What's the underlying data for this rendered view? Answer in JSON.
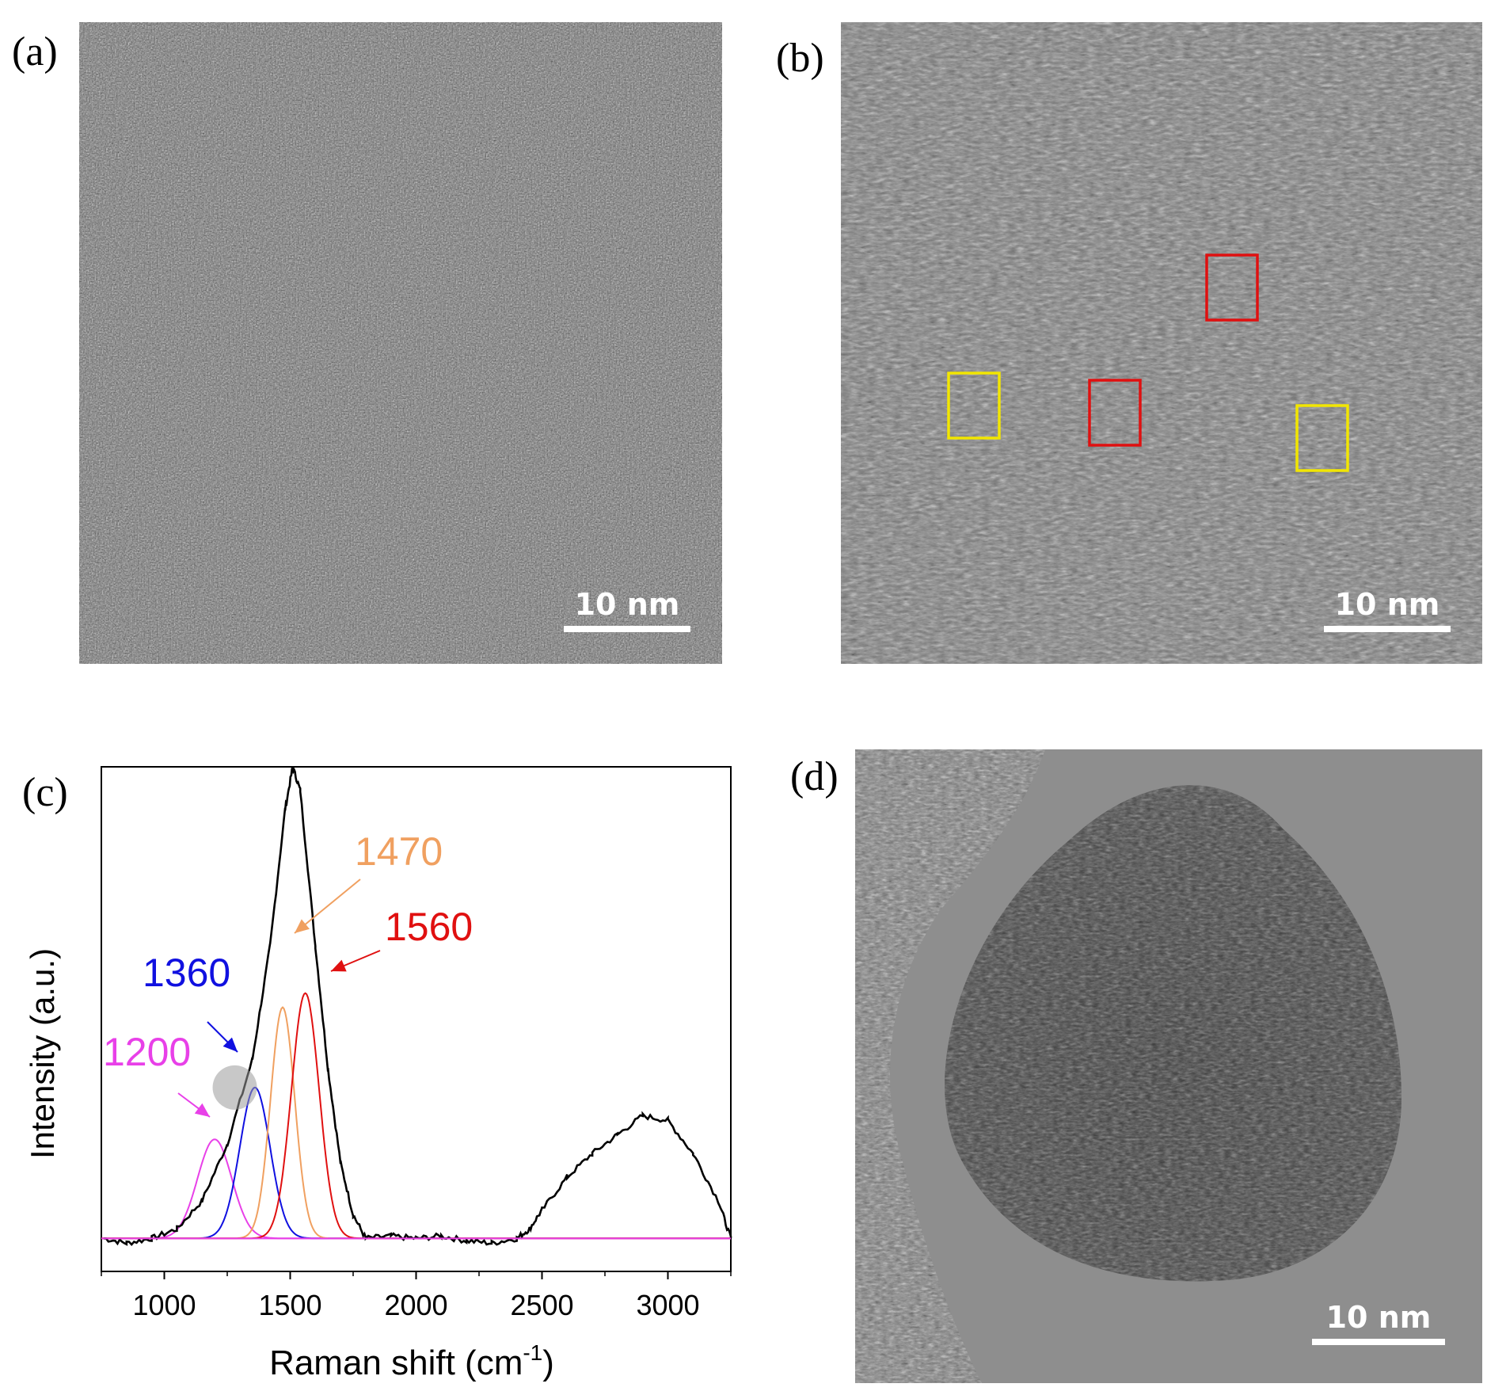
{
  "panels": {
    "a": {
      "label": "(a)",
      "scale_bar": "10 nm"
    },
    "b": {
      "label": "(b)",
      "scale_bar": "10 nm",
      "boxes": [
        {
          "color": "#e01010"
        },
        {
          "color": "#e01010"
        },
        {
          "color": "#f2e600"
        },
        {
          "color": "#f2e600"
        }
      ]
    },
    "c": {
      "label": "(c)"
    },
    "d": {
      "label": "(d)",
      "scale_bar": "10 nm"
    }
  },
  "chart_data": {
    "type": "line",
    "xlabel": "Raman shift (cm",
    "xlabel_sup": "-1",
    "xlabel_close": ")",
    "ylabel": "Intensity (a.u.)",
    "xlim": [
      750,
      3250
    ],
    "ylim": [
      -0.07,
      1.0
    ],
    "x_ticks": [
      1000,
      1500,
      2000,
      2500,
      3000
    ],
    "x_tick_labels": [
      "1000",
      "1500",
      "2000",
      "2500",
      "3000"
    ],
    "series": [
      {
        "color": "#000000",
        "x": [
          760,
          850,
          950,
          1050,
          1150,
          1250,
          1350,
          1420,
          1480,
          1510,
          1540,
          1600,
          1650,
          1700,
          1750,
          1800,
          1900,
          2000,
          2100,
          2200,
          2300,
          2400,
          2450,
          2500,
          2600,
          2700,
          2800,
          2900,
          3000,
          3100,
          3200,
          3250
        ],
        "y": [
          0.0,
          -0.01,
          0.0,
          0.02,
          0.08,
          0.2,
          0.38,
          0.62,
          0.91,
          1.0,
          0.95,
          0.62,
          0.36,
          0.16,
          0.05,
          0.0,
          0.005,
          0.0,
          0.005,
          -0.005,
          -0.01,
          0.0,
          0.02,
          0.06,
          0.13,
          0.18,
          0.22,
          0.26,
          0.25,
          0.18,
          0.08,
          0.0
        ]
      },
      {
        "color": "#e840e8",
        "peak": 1200,
        "height": 0.21,
        "width": 68
      },
      {
        "color": "#1010e0",
        "peak": 1360,
        "height": 0.32,
        "width": 60
      },
      {
        "color": "#f0a060",
        "peak": 1470,
        "height": 0.49,
        "width": 48
      },
      {
        "color": "#e01010",
        "peak": 1560,
        "height": 0.52,
        "width": 55
      }
    ],
    "annotations": [
      {
        "text": "1200",
        "color": "#e840e8"
      },
      {
        "text": "1360",
        "color": "#1010e0"
      },
      {
        "text": "1470",
        "color": "#f0a060"
      },
      {
        "text": "1560",
        "color": "#e01010"
      }
    ]
  }
}
